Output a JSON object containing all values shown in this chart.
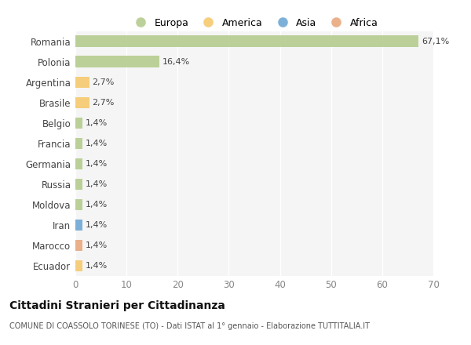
{
  "categories": [
    "Romania",
    "Polonia",
    "Argentina",
    "Brasile",
    "Belgio",
    "Francia",
    "Germania",
    "Russia",
    "Moldova",
    "Iran",
    "Marocco",
    "Ecuador"
  ],
  "values": [
    67.1,
    16.4,
    2.7,
    2.7,
    1.4,
    1.4,
    1.4,
    1.4,
    1.4,
    1.4,
    1.4,
    1.4
  ],
  "labels": [
    "67,1%",
    "16,4%",
    "2,7%",
    "2,7%",
    "1,4%",
    "1,4%",
    "1,4%",
    "1,4%",
    "1,4%",
    "1,4%",
    "1,4%",
    "1,4%"
  ],
  "colors": [
    "#b5cc8e",
    "#b5cc8e",
    "#f5c96e",
    "#f5c96e",
    "#b5cc8e",
    "#b5cc8e",
    "#b5cc8e",
    "#b5cc8e",
    "#b5cc8e",
    "#6fa8d4",
    "#e8a97e",
    "#f5c96e"
  ],
  "legend_labels": [
    "Europa",
    "America",
    "Asia",
    "Africa"
  ],
  "legend_colors": [
    "#b5cc8e",
    "#f5c96e",
    "#6fa8d4",
    "#e8a97e"
  ],
  "title": "Cittadini Stranieri per Cittadinanza",
  "subtitle": "COMUNE DI COASSOLO TORINESE (TO) - Dati ISTAT al 1° gennaio - Elaborazione TUTTITALIA.IT",
  "xlim": [
    0,
    70
  ],
  "xticks": [
    0,
    10,
    20,
    30,
    40,
    50,
    60,
    70
  ],
  "background_color": "#ffffff",
  "plot_bg_color": "#f5f5f5",
  "grid_color": "#ffffff",
  "bar_height": 0.55
}
